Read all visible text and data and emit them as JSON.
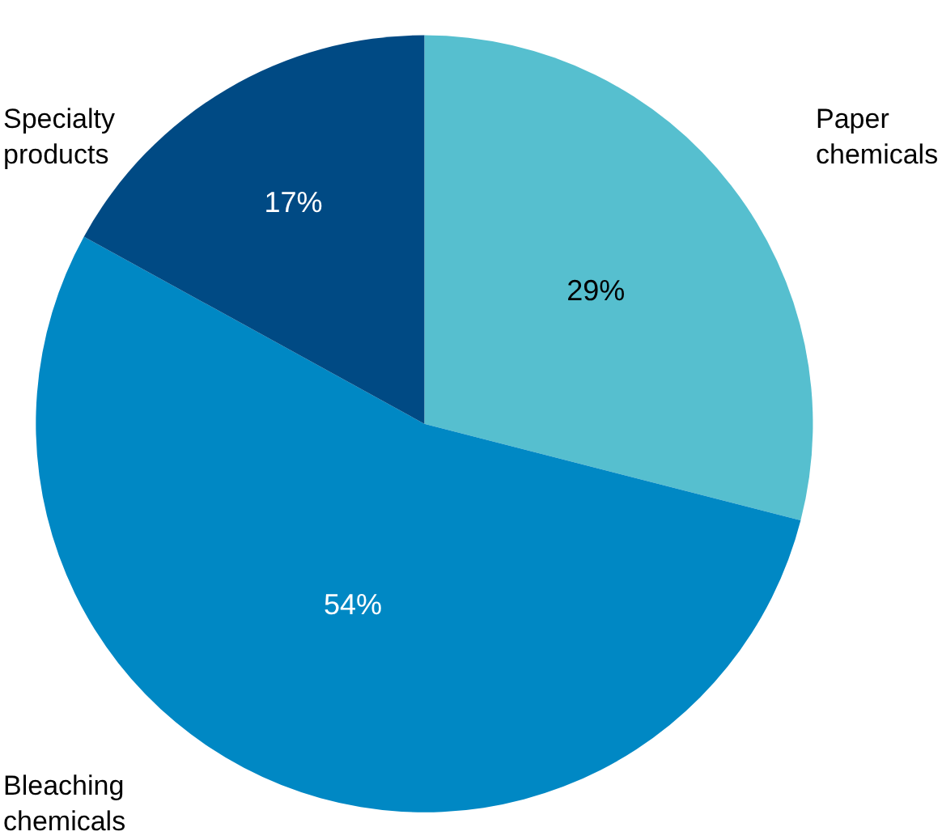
{
  "chart_data": {
    "type": "pie",
    "categories": [
      "Paper chemicals",
      "Bleaching chemicals",
      "Specialty products"
    ],
    "values": [
      29,
      54,
      17
    ],
    "colors": [
      "#56bfcf",
      "#0088c4",
      "#004a84"
    ],
    "value_labels": [
      "29%",
      "54%",
      "17%"
    ],
    "legend": false
  }
}
